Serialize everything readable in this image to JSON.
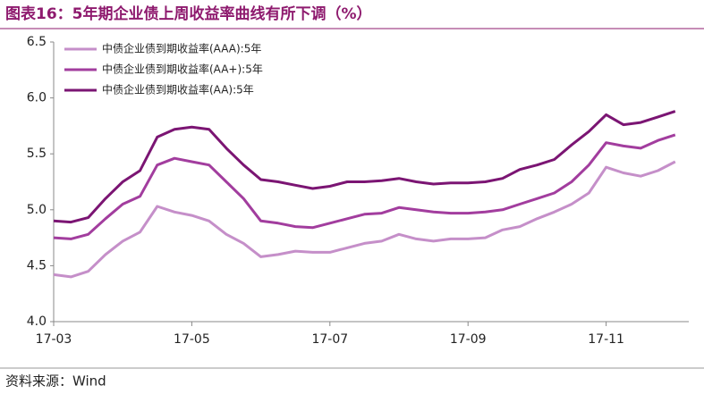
{
  "chart_data": {
    "type": "line",
    "title": "图表16：5年期企业债上周收益率曲线有所下调（%）",
    "source": "资料来源：Wind",
    "categories": [
      "17-03",
      null,
      null,
      null,
      null,
      null,
      null,
      null,
      "17-05",
      null,
      null,
      null,
      null,
      null,
      null,
      null,
      "17-07",
      null,
      null,
      null,
      null,
      null,
      null,
      null,
      "17-09",
      null,
      null,
      null,
      null,
      null,
      null,
      null,
      "17-11",
      null,
      null,
      null,
      null
    ],
    "series": [
      {
        "name": "中债企业债到期收益率(AAA):5年",
        "color": "#c58fc9",
        "values": [
          4.42,
          4.4,
          4.45,
          4.6,
          4.72,
          4.8,
          5.03,
          4.98,
          4.95,
          4.9,
          4.78,
          4.7,
          4.58,
          4.6,
          4.63,
          4.62,
          4.62,
          4.66,
          4.7,
          4.72,
          4.78,
          4.74,
          4.72,
          4.74,
          4.74,
          4.75,
          4.82,
          4.85,
          4.92,
          4.98,
          5.05,
          5.15,
          5.38,
          5.33,
          5.3,
          5.35,
          5.43
        ]
      },
      {
        "name": "中债企业债到期收益率(AA+):5年",
        "color": "#a23d9e",
        "values": [
          4.75,
          4.74,
          4.78,
          4.92,
          5.05,
          5.12,
          5.4,
          5.46,
          5.43,
          5.4,
          5.25,
          5.1,
          4.9,
          4.88,
          4.85,
          4.84,
          4.88,
          4.92,
          4.96,
          4.97,
          5.02,
          5.0,
          4.98,
          4.97,
          4.97,
          4.98,
          5.0,
          5.05,
          5.1,
          5.15,
          5.25,
          5.4,
          5.6,
          5.57,
          5.55,
          5.62,
          5.67
        ]
      },
      {
        "name": "中债企业债到期收益率(AA):5年",
        "color": "#7b1573",
        "values": [
          4.9,
          4.89,
          4.93,
          5.1,
          5.25,
          5.35,
          5.65,
          5.72,
          5.74,
          5.72,
          5.55,
          5.4,
          5.27,
          5.25,
          5.22,
          5.19,
          5.21,
          5.25,
          5.25,
          5.26,
          5.28,
          5.25,
          5.23,
          5.24,
          5.24,
          5.25,
          5.28,
          5.36,
          5.4,
          5.45,
          5.58,
          5.7,
          5.85,
          5.76,
          5.78,
          5.83,
          5.88
        ]
      }
    ],
    "ylim": [
      4,
      6.5
    ],
    "yticks": [
      {
        "value": 4,
        "label": "4.0"
      },
      4.5,
      {
        "value": 5,
        "label": "5.0"
      },
      5.5,
      {
        "value": 6,
        "label": "6.0"
      },
      6.5
    ],
    "legend": "upper left",
    "grid": false
  }
}
